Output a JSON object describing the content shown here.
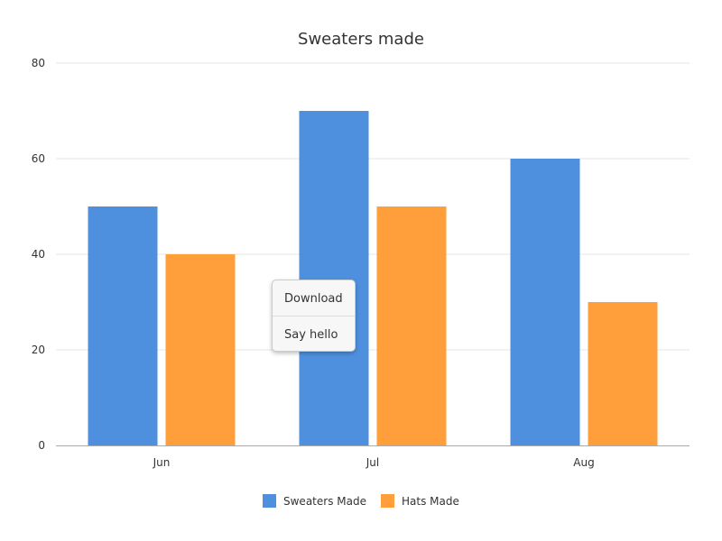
{
  "chart_data": {
    "type": "bar",
    "title": "Sweaters made",
    "categories": [
      "Jun",
      "Jul",
      "Aug"
    ],
    "series": [
      {
        "name": "Sweaters Made",
        "values": [
          50,
          70,
          60
        ],
        "color": "#4f90de"
      },
      {
        "name": "Hats Made",
        "values": [
          40,
          50,
          30
        ],
        "color": "#fe9f3b"
      }
    ],
    "ylim": [
      0,
      80
    ],
    "yticks": [
      0,
      20,
      40,
      60,
      80
    ],
    "grid": true,
    "legend_position": "bottom"
  },
  "context_menu": {
    "items": [
      {
        "label": "Download"
      },
      {
        "label": "Say hello"
      }
    ]
  }
}
